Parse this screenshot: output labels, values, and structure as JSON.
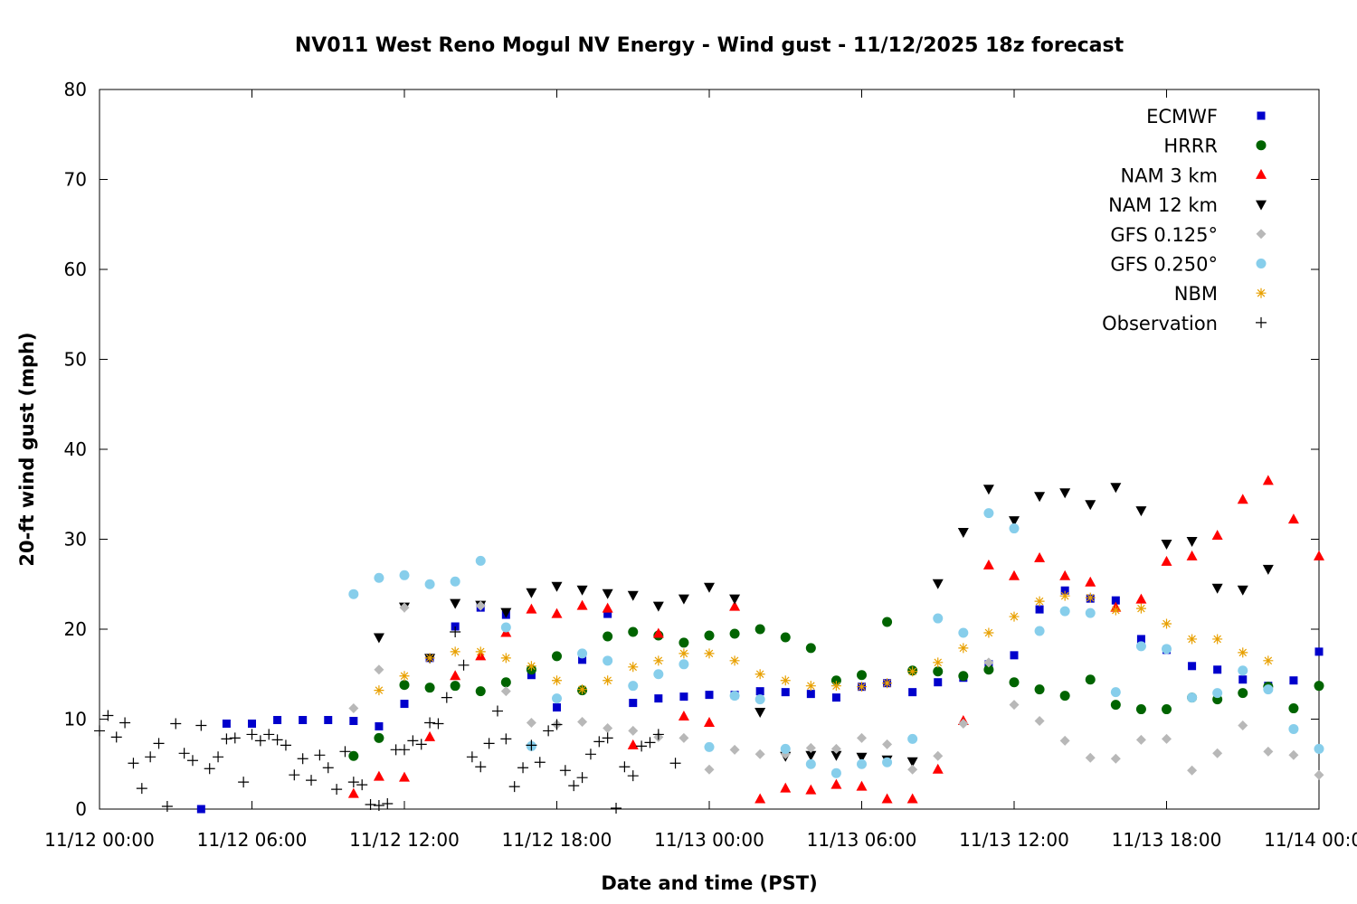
{
  "chart_data": {
    "type": "scatter",
    "title": "NV011 West Reno Mogul NV Energy - Wind gust - 11/12/2025 18z forecast",
    "xlabel": "Date and time (PST)",
    "ylabel": "20-ft wind gust (mph)",
    "xlim": [
      "11/12/2025 00:00",
      "11/14/2025 00:00"
    ],
    "ylim": [
      0,
      80
    ],
    "x_ticks": [
      "11/12 00:00",
      "11/12 06:00",
      "11/12 12:00",
      "11/12 18:00",
      "11/13 00:00",
      "11/13 06:00",
      "11/13 12:00",
      "11/13 18:00",
      "11/14 00:00"
    ],
    "y_ticks": [
      "0",
      "10",
      "20",
      "30",
      "40",
      "50",
      "60",
      "70",
      "80"
    ],
    "legend_position": "top-right",
    "grid": false,
    "series": [
      {
        "name": "ECMWF",
        "marker": "square",
        "color": "#0000cc",
        "x": [
          "11/12 04:00",
          "11/12 05:00",
          "11/12 06:00",
          "11/12 07:00",
          "11/12 08:00",
          "11/12 09:00",
          "11/12 10:00",
          "11/12 11:00",
          "11/12 12:00",
          "11/12 13:00",
          "11/12 14:00",
          "11/12 15:00",
          "11/12 16:00",
          "11/12 17:00",
          "11/12 18:00",
          "11/12 19:00",
          "11/12 20:00",
          "11/12 21:00",
          "11/12 22:00",
          "11/12 23:00",
          "11/13 00:00",
          "11/13 01:00",
          "11/13 02:00",
          "11/13 03:00",
          "11/13 04:00",
          "11/13 05:00",
          "11/13 06:00",
          "11/13 07:00",
          "11/13 08:00",
          "11/13 09:00",
          "11/13 10:00",
          "11/13 11:00",
          "11/13 12:00",
          "11/13 13:00",
          "11/13 14:00",
          "11/13 15:00",
          "11/13 16:00",
          "11/13 17:00",
          "11/13 18:00",
          "11/13 19:00",
          "11/13 20:00",
          "11/13 21:00",
          "11/13 22:00",
          "11/13 23:00",
          "11/14 00:00"
        ],
        "y": [
          0,
          9.5,
          9.5,
          9.9,
          9.9,
          9.9,
          9.8,
          9.2,
          11.7,
          16.8,
          20.3,
          22.4,
          21.6,
          14.9,
          11.3,
          16.6,
          21.7,
          11.8,
          12.3,
          12.5,
          12.7,
          12.7,
          13.1,
          13.0,
          12.8,
          12.4,
          13.6,
          14.0,
          13.0,
          14.1,
          14.6,
          16.1,
          17.1,
          22.2,
          24.3,
          23.4,
          23.2,
          18.9,
          17.7,
          15.9,
          15.5,
          14.4,
          13.7,
          14.3,
          17.5
        ]
      },
      {
        "name": "HRRR",
        "marker": "circle",
        "color": "#006400",
        "x": [
          "11/12 10:00",
          "11/12 11:00",
          "11/12 12:00",
          "11/12 13:00",
          "11/12 14:00",
          "11/12 15:00",
          "11/12 16:00",
          "11/12 17:00",
          "11/12 18:00",
          "11/12 19:00",
          "11/12 20:00",
          "11/12 21:00",
          "11/12 22:00",
          "11/12 23:00",
          "11/13 00:00",
          "11/13 01:00",
          "11/13 02:00",
          "11/13 03:00",
          "11/13 04:00",
          "11/13 05:00",
          "11/13 06:00",
          "11/13 07:00",
          "11/13 08:00",
          "11/13 09:00",
          "11/13 10:00",
          "11/13 11:00",
          "11/13 12:00",
          "11/13 13:00",
          "11/13 14:00",
          "11/13 15:00",
          "11/13 16:00",
          "11/13 17:00",
          "11/13 18:00",
          "11/13 19:00",
          "11/13 20:00",
          "11/13 21:00",
          "11/13 22:00",
          "11/13 23:00",
          "11/14 00:00"
        ],
        "y": [
          5.9,
          7.9,
          13.8,
          13.5,
          13.7,
          13.1,
          14.1,
          15.5,
          17.0,
          13.2,
          19.2,
          19.7,
          19.3,
          18.5,
          19.3,
          19.5,
          20.0,
          19.1,
          17.9,
          14.3,
          14.9,
          20.8,
          15.4,
          15.3,
          14.8,
          15.5,
          14.1,
          13.3,
          12.6,
          14.4,
          11.6,
          11.1,
          11.1,
          12.4,
          12.2,
          12.9,
          13.6,
          11.2,
          13.7
        ]
      },
      {
        "name": "NAM 3 km",
        "marker": "triangle-up",
        "color": "#ff0000",
        "x": [
          "11/12 10:00",
          "11/12 11:00",
          "11/12 12:00",
          "11/12 13:00",
          "11/12 14:00",
          "11/12 15:00",
          "11/12 16:00",
          "11/12 17:00",
          "11/12 18:00",
          "11/12 19:00",
          "11/12 20:00",
          "11/12 21:00",
          "11/12 22:00",
          "11/12 23:00",
          "11/13 00:00",
          "11/13 01:00",
          "11/13 02:00",
          "11/13 03:00",
          "11/13 04:00",
          "11/13 05:00",
          "11/13 06:00",
          "11/13 07:00",
          "11/13 08:00",
          "11/13 09:00",
          "11/13 10:00",
          "11/13 11:00",
          "11/13 12:00",
          "11/13 13:00",
          "11/13 14:00",
          "11/13 15:00",
          "11/13 16:00",
          "11/13 17:00",
          "11/13 18:00",
          "11/13 19:00",
          "11/13 20:00",
          "11/13 21:00",
          "11/13 22:00",
          "11/13 23:00",
          "11/14 00:00"
        ],
        "y": [
          1.7,
          3.6,
          3.5,
          8.0,
          14.8,
          17.0,
          19.6,
          22.2,
          21.7,
          22.6,
          22.3,
          7.1,
          19.5,
          10.3,
          9.6,
          22.5,
          1.1,
          2.3,
          2.1,
          2.7,
          2.5,
          1.1,
          1.1,
          4.4,
          9.8,
          27.1,
          25.9,
          27.9,
          25.9,
          25.2,
          22.4,
          23.3,
          27.5,
          28.1,
          30.4,
          34.4,
          36.5,
          32.2,
          28.1
        ]
      },
      {
        "name": "NAM 12 km",
        "marker": "triangle-down",
        "color": "#000000",
        "x": [
          "11/12 11:00",
          "11/12 12:00",
          "11/12 13:00",
          "11/12 14:00",
          "11/12 15:00",
          "11/12 16:00",
          "11/12 17:00",
          "11/12 18:00",
          "11/12 19:00",
          "11/12 20:00",
          "11/12 21:00",
          "11/12 22:00",
          "11/12 23:00",
          "11/13 00:00",
          "11/13 01:00",
          "11/13 02:00",
          "11/13 03:00",
          "11/13 04:00",
          "11/13 05:00",
          "11/13 06:00",
          "11/13 07:00",
          "11/13 08:00",
          "11/13 09:00",
          "11/13 10:00",
          "11/13 11:00",
          "11/13 12:00",
          "11/13 13:00",
          "11/13 14:00",
          "11/13 15:00",
          "11/13 16:00",
          "11/13 17:00",
          "11/13 18:00",
          "11/13 19:00",
          "11/13 20:00",
          "11/13 21:00",
          "11/13 22:00"
        ],
        "y": [
          19.1,
          22.5,
          16.8,
          22.9,
          22.7,
          21.9,
          24.1,
          24.8,
          24.4,
          24.0,
          23.8,
          22.6,
          23.4,
          24.7,
          23.4,
          10.8,
          5.9,
          6.0,
          6.0,
          5.8,
          5.5,
          5.3,
          25.1,
          30.8,
          35.6,
          32.1,
          34.8,
          35.2,
          33.9,
          35.8,
          33.2,
          29.5,
          29.8,
          24.6,
          24.4,
          26.7
        ]
      },
      {
        "name": "GFS 0.125°",
        "marker": "diamond",
        "color": "#b8b8b8",
        "x": [
          "11/12 10:00",
          "11/12 11:00",
          "11/12 12:00",
          "11/12 15:00",
          "11/12 16:00",
          "11/12 17:00",
          "11/12 18:00",
          "11/12 19:00",
          "11/12 20:00",
          "11/12 21:00",
          "11/12 22:00",
          "11/12 23:00",
          "11/13 00:00",
          "11/13 01:00",
          "11/13 02:00",
          "11/13 03:00",
          "11/13 04:00",
          "11/13 05:00",
          "11/13 06:00",
          "11/13 07:00",
          "11/13 08:00",
          "11/13 09:00",
          "11/13 10:00",
          "11/13 11:00",
          "11/13 12:00",
          "11/13 13:00",
          "11/13 14:00",
          "11/13 15:00",
          "11/13 16:00",
          "11/13 17:00",
          "11/13 18:00",
          "11/13 19:00",
          "11/13 20:00",
          "11/13 21:00",
          "11/13 22:00",
          "11/13 23:00",
          "11/14 00:00"
        ],
        "y": [
          11.2,
          15.5,
          22.4,
          22.6,
          13.1,
          9.6,
          9.4,
          9.7,
          9.0,
          8.7,
          8.0,
          7.9,
          4.4,
          6.6,
          6.1,
          6.1,
          6.8,
          6.7,
          7.9,
          7.2,
          4.4,
          5.9,
          9.5,
          16.3,
          11.6,
          9.8,
          7.6,
          5.7,
          5.6,
          7.7,
          7.8,
          4.3,
          6.2,
          9.3,
          6.4,
          6.0,
          3.8
        ]
      },
      {
        "name": "GFS 0.250°",
        "marker": "circle",
        "color": "#87ceeb",
        "x": [
          "11/12 10:00",
          "11/12 11:00",
          "11/12 12:00",
          "11/12 13:00",
          "11/12 14:00",
          "11/12 15:00",
          "11/12 16:00",
          "11/12 17:00",
          "11/12 18:00",
          "11/12 19:00",
          "11/12 20:00",
          "11/12 21:00",
          "11/12 22:00",
          "11/12 23:00",
          "11/13 00:00",
          "11/13 01:00",
          "11/13 02:00",
          "11/13 03:00",
          "11/13 04:00",
          "11/13 05:00",
          "11/13 06:00",
          "11/13 07:00",
          "11/13 08:00",
          "11/13 09:00",
          "11/13 10:00",
          "11/13 11:00",
          "11/13 12:00",
          "11/13 13:00",
          "11/13 14:00",
          "11/13 15:00",
          "11/13 16:00",
          "11/13 17:00",
          "11/13 18:00",
          "11/13 19:00",
          "11/13 20:00",
          "11/13 21:00",
          "11/13 22:00",
          "11/13 23:00",
          "11/14 00:00"
        ],
        "y": [
          23.9,
          25.7,
          26.0,
          25.0,
          25.3,
          27.6,
          20.2,
          7.0,
          12.3,
          17.3,
          16.5,
          13.7,
          15.0,
          16.1,
          6.9,
          12.6,
          12.2,
          6.7,
          5.0,
          4.0,
          5.0,
          5.2,
          7.8,
          21.2,
          19.6,
          32.9,
          31.2,
          19.8,
          22.0,
          21.8,
          13.0,
          18.1,
          17.8,
          12.4,
          12.9,
          15.4,
          13.3,
          8.9,
          6.7
        ]
      },
      {
        "name": "NBM",
        "marker": "asterisk",
        "color": "#e8a000",
        "x": [
          "11/12 11:00",
          "11/12 12:00",
          "11/12 13:00",
          "11/12 14:00",
          "11/12 15:00",
          "11/12 16:00",
          "11/12 17:00",
          "11/12 18:00",
          "11/12 19:00",
          "11/12 20:00",
          "11/12 21:00",
          "11/12 22:00",
          "11/12 23:00",
          "11/13 00:00",
          "11/13 01:00",
          "11/13 02:00",
          "11/13 03:00",
          "11/13 04:00",
          "11/13 05:00",
          "11/13 06:00",
          "11/13 07:00",
          "11/13 08:00",
          "11/13 09:00",
          "11/13 10:00",
          "11/13 11:00",
          "11/13 12:00",
          "11/13 13:00",
          "11/13 14:00",
          "11/13 15:00",
          "11/13 16:00",
          "11/13 17:00",
          "11/13 18:00",
          "11/13 19:00",
          "11/13 20:00",
          "11/13 21:00",
          "11/13 22:00"
        ],
        "y": [
          13.2,
          14.8,
          16.8,
          17.5,
          17.5,
          16.8,
          15.9,
          14.3,
          13.3,
          14.3,
          15.8,
          16.5,
          17.3,
          17.3,
          16.5,
          15.0,
          14.3,
          13.7,
          13.7,
          13.6,
          14.0,
          15.3,
          16.3,
          17.9,
          19.6,
          21.4,
          23.1,
          23.7,
          23.5,
          22.1,
          22.3,
          20.6,
          18.9,
          18.9,
          17.4,
          16.5
        ]
      },
      {
        "name": "Observation",
        "marker": "plus",
        "color": "#000000",
        "x": [
          "11/12 00:00",
          "11/12 00:20",
          "11/12 00:40",
          "11/12 01:00",
          "11/12 01:20",
          "11/12 01:40",
          "11/12 02:00",
          "11/12 02:20",
          "11/12 02:40",
          "11/12 03:00",
          "11/12 03:20",
          "11/12 03:40",
          "11/12 04:00",
          "11/12 04:20",
          "11/12 04:40",
          "11/12 05:00",
          "11/12 05:20",
          "11/12 05:40",
          "11/12 06:00",
          "11/12 06:20",
          "11/12 06:40",
          "11/12 07:00",
          "11/12 07:20",
          "11/12 07:40",
          "11/12 08:00",
          "11/12 08:20",
          "11/12 08:40",
          "11/12 09:00",
          "11/12 09:20",
          "11/12 09:40",
          "11/12 10:00",
          "11/12 10:20",
          "11/12 10:40",
          "11/12 11:00",
          "11/12 11:20",
          "11/12 11:40",
          "11/12 12:00",
          "11/12 12:20",
          "11/12 12:40",
          "11/12 13:00",
          "11/12 13:20",
          "11/12 13:40",
          "11/12 14:00",
          "11/12 14:20",
          "11/12 14:40",
          "11/12 15:00",
          "11/12 15:20",
          "11/12 15:40",
          "11/12 16:00",
          "11/12 16:20",
          "11/12 16:40",
          "11/12 17:00",
          "11/12 17:20",
          "11/12 17:40",
          "11/12 18:00",
          "11/12 18:20",
          "11/12 18:40",
          "11/12 19:00",
          "11/12 19:20",
          "11/12 19:40",
          "11/12 20:00",
          "11/12 20:20",
          "11/12 20:40",
          "11/12 21:00",
          "11/12 21:20",
          "11/12 21:40",
          "11/12 22:00",
          "11/12 22:40"
        ],
        "y": [
          8.7,
          10.4,
          8.0,
          9.6,
          5.1,
          2.3,
          5.8,
          7.3,
          0.3,
          9.5,
          6.2,
          5.4,
          9.3,
          4.5,
          5.8,
          7.8,
          7.9,
          3.0,
          8.3,
          7.6,
          8.3,
          7.7,
          7.1,
          3.8,
          5.6,
          3.2,
          6.0,
          4.6,
          2.2,
          6.4,
          3.0,
          2.7,
          0.5,
          0.4,
          0.6,
          6.6,
          6.6,
          7.6,
          7.2,
          9.6,
          9.5,
          12.4,
          19.7,
          16.0,
          5.8,
          4.7,
          7.3,
          10.9,
          7.8,
          2.5,
          4.6,
          7.1,
          5.2,
          8.7,
          9.4,
          4.3,
          2.6,
          3.5,
          6.1,
          7.5,
          7.9,
          0.1,
          4.7,
          3.7,
          7.0,
          7.4,
          8.3,
          5.1
        ]
      }
    ]
  }
}
